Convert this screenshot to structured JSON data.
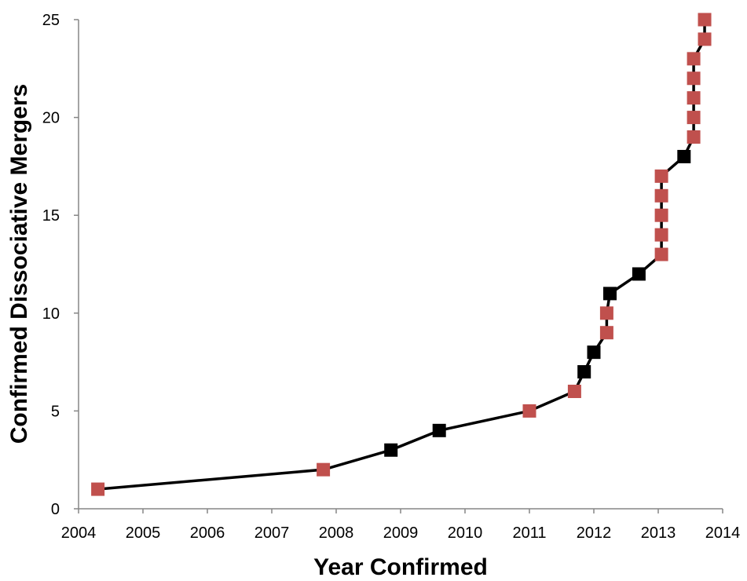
{
  "chart_data": {
    "type": "line",
    "title": "",
    "xlabel": "Year Confirmed",
    "ylabel": "Confirmed Dissociative Mergers",
    "xlim": [
      2004,
      2014
    ],
    "ylim": [
      0,
      25
    ],
    "x_ticks": [
      "2004",
      "2005",
      "2006",
      "2007",
      "2008",
      "2009",
      "2010",
      "2011",
      "2012",
      "2013",
      "2014"
    ],
    "y_ticks": [
      "0",
      "5",
      "10",
      "15",
      "20",
      "25"
    ],
    "grid": false,
    "legend": "none",
    "line_color": "#000000",
    "marker": "square",
    "marker_colors": {
      "red": "#C0504D",
      "black": "#000000"
    },
    "series": [
      {
        "points": [
          {
            "x": 2004.3,
            "y": 1,
            "marker": "red"
          },
          {
            "x": 2007.8,
            "y": 2,
            "marker": "red"
          },
          {
            "x": 2008.85,
            "y": 3,
            "marker": "black"
          },
          {
            "x": 2009.6,
            "y": 4,
            "marker": "black"
          },
          {
            "x": 2011.0,
            "y": 5,
            "marker": "red"
          },
          {
            "x": 2011.7,
            "y": 6,
            "marker": "red"
          },
          {
            "x": 2011.85,
            "y": 7,
            "marker": "black"
          },
          {
            "x": 2012.0,
            "y": 8,
            "marker": "black"
          },
          {
            "x": 2012.2,
            "y": 9,
            "marker": "red"
          },
          {
            "x": 2012.2,
            "y": 10,
            "marker": "red"
          },
          {
            "x": 2012.25,
            "y": 11,
            "marker": "black"
          },
          {
            "x": 2012.7,
            "y": 12,
            "marker": "black"
          },
          {
            "x": 2013.05,
            "y": 13,
            "marker": "red"
          },
          {
            "x": 2013.05,
            "y": 14,
            "marker": "red"
          },
          {
            "x": 2013.05,
            "y": 15,
            "marker": "red"
          },
          {
            "x": 2013.05,
            "y": 16,
            "marker": "red"
          },
          {
            "x": 2013.05,
            "y": 17,
            "marker": "red"
          },
          {
            "x": 2013.4,
            "y": 18,
            "marker": "black"
          },
          {
            "x": 2013.55,
            "y": 19,
            "marker": "red"
          },
          {
            "x": 2013.55,
            "y": 20,
            "marker": "red"
          },
          {
            "x": 2013.55,
            "y": 21,
            "marker": "red"
          },
          {
            "x": 2013.55,
            "y": 22,
            "marker": "red"
          },
          {
            "x": 2013.55,
            "y": 23,
            "marker": "red"
          },
          {
            "x": 2013.72,
            "y": 24,
            "marker": "red"
          },
          {
            "x": 2013.72,
            "y": 25,
            "marker": "red"
          }
        ]
      }
    ]
  }
}
